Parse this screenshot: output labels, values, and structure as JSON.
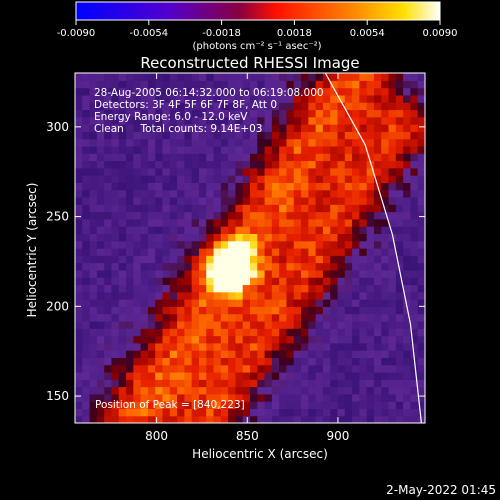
{
  "chart_data": {
    "type": "heatmap",
    "title": "Reconstructed RHESSI Image",
    "xlabel": "Heliocentric X (arcsec)",
    "ylabel": "Heliocentric Y (arcsec)",
    "xlim": [
      755,
      948
    ],
    "ylim": [
      135,
      330
    ],
    "x_ticks": [
      800,
      850,
      900
    ],
    "y_ticks": [
      150,
      200,
      250,
      300
    ],
    "colorbar": {
      "range": [
        -0.009,
        0.009
      ],
      "ticks": [
        -0.009,
        -0.0054,
        -0.0018,
        0.0018,
        0.0054,
        0.009
      ],
      "tick_labels": [
        "-0.0090",
        "-0.0054",
        "-0.0018",
        "0.0018",
        "0.0054",
        "0.0090"
      ],
      "unit_label": "(photons cm⁻² s⁻¹ asec⁻²)",
      "colors": [
        "#0000ff",
        "#6a00ff",
        "#ff2000",
        "#ff8000",
        "#ffff00",
        "#ffffff"
      ]
    },
    "annotations": [
      "28-Aug-2005 06:14:32.000 to 06:19:08.000",
      "Detectors: 3F 4F 5F 6F 7F 8F, Att 0",
      "Energy Range: 6.0 - 12.0 keV",
      "Clean     Total counts: 9.14E+03"
    ],
    "peak_label": "Position of Peak = [840,223]",
    "peak": {
      "x": 840,
      "y": 223
    },
    "limb_points": [
      [
        893,
        330
      ],
      [
        915,
        290
      ],
      [
        930,
        240
      ],
      [
        940,
        190
      ],
      [
        946,
        135
      ]
    ],
    "stripes": [
      {
        "kind": "positive",
        "x1": 790,
        "y1": 140,
        "x2": 910,
        "y2": 330,
        "width": 32,
        "intensity": 0.55
      },
      {
        "kind": "positive",
        "x1": 830,
        "y1": 140,
        "x2": 935,
        "y2": 300,
        "width": 26,
        "intensity": 0.45
      },
      {
        "kind": "negative",
        "x1": 755,
        "y1": 240,
        "x2": 840,
        "y2": 140,
        "width": 0,
        "intensity": 0.0
      }
    ]
  },
  "footer_timestamp": "2-May-2022 01:45"
}
